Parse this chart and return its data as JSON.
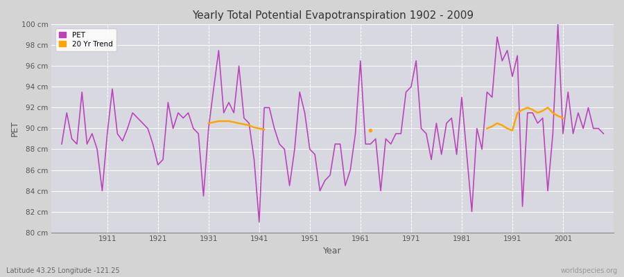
{
  "title": "Yearly Total Potential Evapotranspiration 1902 - 2009",
  "xlabel": "Year",
  "ylabel": "PET",
  "footnote_left": "Latitude 43.25 Longitude -121.25",
  "footnote_right": "worldspecies.org",
  "ylim": [
    80,
    100
  ],
  "ytick_labels": [
    "80 cm",
    "82 cm",
    "84 cm",
    "86 cm",
    "88 cm",
    "90 cm",
    "92 cm",
    "94 cm",
    "96 cm",
    "98 cm",
    "100 cm"
  ],
  "ytick_values": [
    80,
    82,
    84,
    86,
    88,
    90,
    92,
    94,
    96,
    98,
    100
  ],
  "pet_color": "#bb44bb",
  "trend_color": "#ffa500",
  "pet_linewidth": 1.2,
  "trend_linewidth": 1.8,
  "fig_facecolor": "#d4d4d4",
  "ax_facecolor": "#d8d8e0",
  "grid_color": "#ffffff",
  "years": [
    1902,
    1903,
    1904,
    1905,
    1906,
    1907,
    1908,
    1909,
    1910,
    1911,
    1912,
    1913,
    1914,
    1915,
    1916,
    1917,
    1918,
    1919,
    1920,
    1921,
    1922,
    1923,
    1924,
    1925,
    1926,
    1927,
    1928,
    1929,
    1930,
    1931,
    1932,
    1933,
    1934,
    1935,
    1936,
    1937,
    1938,
    1939,
    1940,
    1941,
    1942,
    1943,
    1944,
    1945,
    1946,
    1947,
    1948,
    1949,
    1950,
    1951,
    1952,
    1953,
    1954,
    1955,
    1956,
    1957,
    1958,
    1959,
    1960,
    1961,
    1962,
    1963,
    1964,
    1965,
    1966,
    1967,
    1968,
    1969,
    1970,
    1971,
    1972,
    1973,
    1974,
    1975,
    1976,
    1977,
    1978,
    1979,
    1980,
    1981,
    1982,
    1983,
    1984,
    1985,
    1986,
    1987,
    1988,
    1989,
    1990,
    1991,
    1992,
    1993,
    1994,
    1995,
    1996,
    1997,
    1998,
    1999,
    2000,
    2001,
    2002,
    2003,
    2004,
    2005,
    2006,
    2007,
    2008,
    2009
  ],
  "pet_values": [
    88.5,
    91.5,
    89.0,
    88.5,
    93.5,
    88.5,
    89.5,
    88.0,
    84.0,
    89.5,
    93.8,
    89.5,
    88.8,
    90.0,
    91.5,
    91.0,
    90.5,
    90.0,
    88.5,
    86.5,
    87.0,
    92.5,
    90.0,
    91.5,
    91.0,
    91.5,
    90.0,
    89.5,
    83.5,
    90.0,
    93.8,
    97.5,
    91.5,
    92.5,
    91.5,
    96.0,
    91.0,
    90.5,
    87.0,
    81.0,
    92.0,
    92.0,
    90.0,
    88.5,
    88.0,
    84.5,
    88.0,
    93.5,
    91.5,
    88.0,
    87.5,
    84.0,
    85.0,
    85.5,
    88.5,
    88.5,
    84.5,
    86.0,
    89.5,
    96.5,
    88.5,
    88.5,
    89.0,
    84.0,
    89.0,
    88.5,
    89.5,
    89.5,
    93.5,
    94.0,
    96.5,
    90.0,
    89.5,
    87.0,
    90.5,
    87.5,
    90.5,
    91.0,
    87.5,
    93.0,
    87.5,
    82.0,
    90.0,
    88.0,
    93.5,
    93.0,
    98.8,
    96.5,
    97.5,
    95.0,
    97.0,
    82.5,
    91.5,
    91.5,
    90.5,
    91.0,
    84.0,
    89.5,
    100.0,
    89.5,
    93.5,
    89.5,
    91.5,
    90.0,
    92.0,
    90.0,
    90.0,
    89.5
  ],
  "trend_seg1_years": [
    1931,
    1932,
    1933,
    1934,
    1935,
    1936,
    1937,
    1938,
    1939,
    1940,
    1941,
    1942
  ],
  "trend_seg1_values": [
    90.5,
    90.6,
    90.7,
    90.7,
    90.7,
    90.6,
    90.5,
    90.4,
    90.3,
    90.1,
    90.0,
    89.9
  ],
  "trend_dot_year": 1963,
  "trend_dot_value": 89.8,
  "trend_seg2_years": [
    1986,
    1987,
    1988,
    1989,
    1990,
    1991,
    1992,
    1993,
    1994,
    1995,
    1996,
    1997,
    1998,
    1999,
    2000,
    2001
  ],
  "trend_seg2_values": [
    90.0,
    90.2,
    90.5,
    90.3,
    90.0,
    89.8,
    91.5,
    91.8,
    92.0,
    91.8,
    91.5,
    91.7,
    92.0,
    91.5,
    91.2,
    91.0
  ],
  "xlim": [
    1900,
    2011
  ],
  "xtick_positions": [
    1911,
    1921,
    1931,
    1941,
    1951,
    1961,
    1971,
    1981,
    1991,
    2001
  ]
}
